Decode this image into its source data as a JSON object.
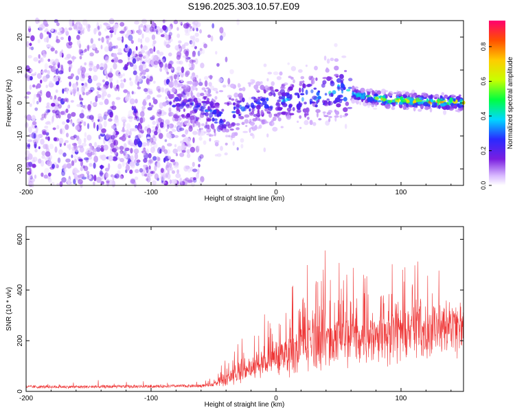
{
  "title": "S196.2025.303.10.57.E09",
  "colors": {
    "snr_line": "#ee3333",
    "axis": "#000000",
    "background": "#ffffff"
  },
  "chart_data": [
    {
      "type": "heatmap",
      "name": "spectrogram",
      "xlabel": "Height of straight line (km)",
      "ylabel": "Frequency (Hz)",
      "xlim": [
        -200,
        150
      ],
      "ylim": [
        -25,
        25
      ],
      "xticks": [
        -200,
        -100,
        0,
        100
      ],
      "yticks": [
        -20,
        -10,
        0,
        10,
        20
      ],
      "xtick_labels": [
        "-200",
        "-100",
        "0",
        "100"
      ],
      "ytick_labels": [
        "-20",
        "-10",
        "0",
        "10",
        "20"
      ],
      "colorbar": {
        "label": "Normalized spectral amplitude",
        "range": [
          0,
          0.95
        ],
        "ticks": [
          0.0,
          0.2,
          0.4,
          0.6,
          0.8
        ],
        "tick_labels": [
          "0.0",
          "0.2",
          "0.4",
          "0.6",
          "0.8"
        ]
      },
      "ridge": {
        "description_points_height_km": [
          -85,
          -60,
          -45,
          -30,
          -10,
          10,
          30,
          50,
          70,
          90,
          110,
          130,
          150
        ],
        "frequency_hz": [
          0,
          -1,
          -5,
          -2,
          0,
          1,
          2,
          4,
          2,
          1,
          0.5,
          0.3,
          0.2
        ],
        "peak_amplitude": [
          0.3,
          0.35,
          0.4,
          0.35,
          0.35,
          0.4,
          0.45,
          0.5,
          0.6,
          0.85,
          0.9,
          0.9,
          0.9
        ]
      }
    },
    {
      "type": "line",
      "name": "snr",
      "xlabel": "Height of straight line (km)",
      "ylabel": "SNR (10 * v/v)",
      "xlim": [
        -200,
        150
      ],
      "ylim": [
        0,
        650
      ],
      "xticks": [
        -200,
        -100,
        0,
        100
      ],
      "yticks": [
        0,
        200,
        400,
        600
      ],
      "xtick_labels": [
        "-200",
        "-100",
        "0",
        "100"
      ],
      "ytick_labels": [
        "0",
        "200",
        "400",
        "600"
      ],
      "envelope": {
        "height_km": [
          -200,
          -150,
          -100,
          -60,
          -45,
          -30,
          -15,
          0,
          15,
          30,
          35,
          45,
          60,
          80,
          100,
          125,
          150
        ],
        "snr_baseline": [
          18,
          18,
          20,
          22,
          30,
          50,
          70,
          90,
          110,
          130,
          140,
          150,
          160,
          180,
          200,
          220,
          240
        ],
        "snr_peak": [
          35,
          40,
          40,
          45,
          90,
          200,
          270,
          330,
          460,
          560,
          640,
          520,
          560,
          500,
          480,
          470,
          380
        ]
      }
    }
  ]
}
